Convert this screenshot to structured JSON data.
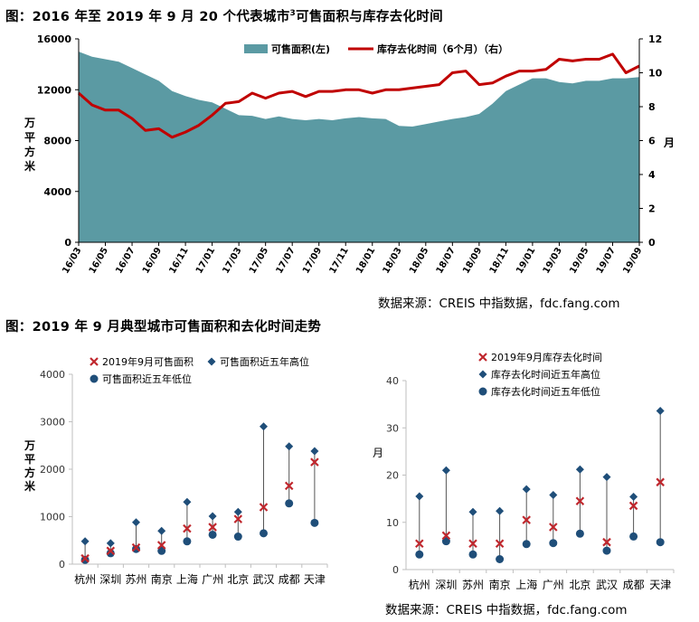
{
  "top": {
    "title_prefix": "图：2016 年至 2019 年 9 月 20 个代表城市",
    "title_sup": "3",
    "title_suffix": "可售面积与库存去化时间",
    "source": "数据来源：CREIS 中指数据，fdc.fang.com"
  },
  "bottom": {
    "title": "图：2019 年 9 月典型城市可售面积和去化时间走势",
    "source": "数据来源：CREIS 中指数据，fdc.fang.com"
  },
  "colors": {
    "area": "#5b9aa3",
    "line": "#c00000",
    "current": "#c0272d",
    "high": "#1f4e79",
    "low": "#1f4e79"
  },
  "chart_data": [
    {
      "type": "area",
      "x": [
        "16/03",
        "16/04",
        "16/05",
        "16/06",
        "16/07",
        "16/08",
        "16/09",
        "16/10",
        "16/11",
        "16/12",
        "17/01",
        "17/02",
        "17/03",
        "17/04",
        "17/05",
        "17/06",
        "17/07",
        "17/08",
        "17/09",
        "17/10",
        "17/11",
        "17/12",
        "18/01",
        "18/02",
        "18/03",
        "18/04",
        "18/05",
        "18/06",
        "18/07",
        "18/08",
        "18/09",
        "18/10",
        "18/11",
        "18/12",
        "19/01",
        "19/02",
        "19/03",
        "19/04",
        "19/05",
        "19/06",
        "19/07",
        "19/08",
        "19/09"
      ],
      "xticks": [
        "16/03",
        "16/05",
        "16/07",
        "16/09",
        "16/11",
        "17/01",
        "17/03",
        "17/05",
        "17/07",
        "17/09",
        "17/11",
        "18/01",
        "18/03",
        "18/05",
        "18/07",
        "18/09",
        "18/11",
        "19/01",
        "19/03",
        "19/05",
        "19/07",
        "19/09"
      ],
      "ylim_left": [
        0,
        16000
      ],
      "yticks_left": [
        0,
        4000,
        8000,
        12000,
        16000
      ],
      "ylabel_left": "万平方米",
      "ylim_right": [
        0,
        12
      ],
      "yticks_right": [
        0,
        2,
        4,
        6,
        8,
        10,
        12
      ],
      "ylabel_right": "月",
      "legend_position": "top-right",
      "series": [
        {
          "name": "可售面积(左)",
          "type": "area",
          "axis": "left",
          "values": [
            15000,
            14600,
            14400,
            14200,
            13700,
            13200,
            12700,
            11900,
            11500,
            11200,
            11000,
            10500,
            10000,
            9950,
            9700,
            9900,
            9700,
            9600,
            9700,
            9600,
            9750,
            9850,
            9750,
            9700,
            9150,
            9100,
            9300,
            9500,
            9700,
            9850,
            10100,
            10900,
            11900,
            12400,
            12900,
            12900,
            12600,
            12500,
            12700,
            12700,
            12900,
            12900,
            13000
          ]
        },
        {
          "name": "库存去化时间（6个月）（右）",
          "type": "line",
          "axis": "right",
          "values": [
            8.8,
            8.1,
            7.8,
            7.8,
            7.3,
            6.6,
            6.7,
            6.2,
            6.5,
            6.9,
            7.5,
            8.2,
            8.3,
            8.8,
            8.5,
            8.8,
            8.9,
            8.6,
            8.9,
            8.9,
            9.0,
            9.0,
            8.8,
            9.0,
            9.0,
            9.1,
            9.2,
            9.3,
            10.0,
            10.1,
            9.3,
            9.4,
            9.8,
            10.1,
            10.1,
            10.2,
            10.8,
            10.7,
            10.8,
            10.8,
            11.1,
            10.0,
            10.4
          ]
        }
      ]
    },
    {
      "type": "scatter",
      "categories": [
        "杭州",
        "深圳",
        "苏州",
        "南京",
        "上海",
        "广州",
        "北京",
        "武汉",
        "成都",
        "天津"
      ],
      "ylim": [
        0,
        4000
      ],
      "yticks": [
        0,
        1000,
        2000,
        3000,
        4000
      ],
      "ylabel": "万平方米",
      "legend_position": "top",
      "series": [
        {
          "name": "2019年9月可售面积",
          "values": [
            120,
            280,
            350,
            400,
            750,
            780,
            950,
            1200,
            1650,
            2150
          ]
        },
        {
          "name": "可售面积近五年高位",
          "values": [
            480,
            440,
            880,
            700,
            1310,
            1010,
            1100,
            2900,
            2480,
            2380
          ]
        },
        {
          "name": "可售面积近五年低位",
          "values": [
            90,
            230,
            320,
            280,
            480,
            620,
            580,
            650,
            1280,
            870
          ]
        }
      ]
    },
    {
      "type": "scatter",
      "categories": [
        "杭州",
        "深圳",
        "苏州",
        "南京",
        "上海",
        "广州",
        "北京",
        "武汉",
        "成都",
        "天津"
      ],
      "ylim": [
        0,
        40
      ],
      "yticks": [
        0,
        10,
        20,
        30,
        40
      ],
      "ylabel": "月",
      "legend_position": "top",
      "series": [
        {
          "name": "2019年9月库存去化时间",
          "values": [
            5.5,
            7.2,
            5.5,
            5.5,
            10.5,
            9.0,
            14.5,
            5.8,
            13.5,
            18.5
          ]
        },
        {
          "name": "库存去化时间近五年高位",
          "values": [
            15.5,
            21.0,
            12.2,
            12.4,
            17.0,
            15.8,
            21.2,
            19.6,
            15.4,
            33.6
          ]
        },
        {
          "name": "库存去化时间近五年低位",
          "values": [
            3.2,
            6.0,
            3.2,
            2.2,
            5.4,
            5.6,
            7.6,
            4.0,
            7.0,
            5.8
          ]
        }
      ]
    }
  ]
}
